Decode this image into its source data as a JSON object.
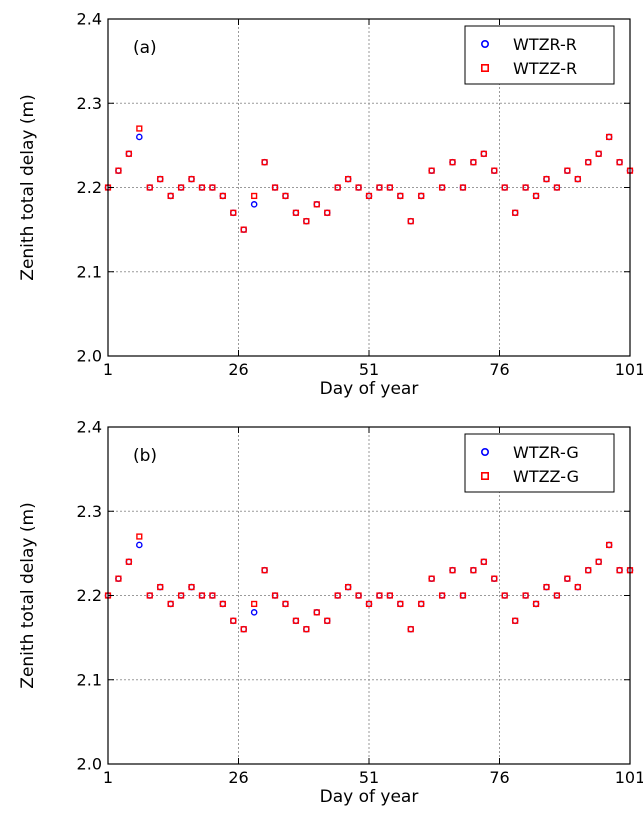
{
  "chart_data": [
    {
      "type": "scatter",
      "panel_label": "(a)",
      "xlabel": "Day of year",
      "ylabel": "Zenith total delay (m)",
      "xlim": [
        1,
        101
      ],
      "ylim": [
        2.0,
        2.4
      ],
      "xticks": [
        1,
        26,
        51,
        76,
        101
      ],
      "yticks": [
        2.0,
        2.1,
        2.2,
        2.3,
        2.4
      ],
      "xtick_labels": [
        "1",
        "26",
        "51",
        "76",
        "101"
      ],
      "ytick_labels": [
        "2.0",
        "2.1",
        "2.2",
        "2.3",
        "2.4"
      ],
      "grid": true,
      "legend_position": "top-right",
      "series": [
        {
          "name": "WTZR-R",
          "marker": "circle",
          "color": "#0000ff",
          "x": [
            1,
            3,
            5,
            7,
            9,
            11,
            13,
            15,
            17,
            19,
            21,
            23,
            25,
            27,
            29,
            31,
            33,
            35,
            37,
            39,
            41,
            43,
            45,
            47,
            49,
            51,
            53,
            55,
            57,
            59,
            61,
            63,
            65,
            67,
            69,
            71,
            73,
            75,
            77,
            79,
            81,
            83,
            85,
            87,
            89,
            91,
            93,
            95,
            97,
            99,
            101
          ],
          "y": [
            2.2,
            2.22,
            2.24,
            2.26,
            2.2,
            2.21,
            2.19,
            2.2,
            2.21,
            2.2,
            2.2,
            2.19,
            2.17,
            2.15,
            2.18,
            2.23,
            2.2,
            2.19,
            2.17,
            2.16,
            2.18,
            2.17,
            2.2,
            2.21,
            2.2,
            2.19,
            2.2,
            2.2,
            2.19,
            2.16,
            2.19,
            2.22,
            2.2,
            2.23,
            2.2,
            2.23,
            2.24,
            2.22,
            2.2,
            2.17,
            2.2,
            2.19,
            2.21,
            2.2,
            2.22,
            2.21,
            2.23,
            2.24,
            2.26,
            2.23,
            2.22
          ]
        },
        {
          "name": "WTZZ-R",
          "marker": "square",
          "color": "#ff0000",
          "x": [
            1,
            3,
            5,
            7,
            9,
            11,
            13,
            15,
            17,
            19,
            21,
            23,
            25,
            27,
            29,
            31,
            33,
            35,
            37,
            39,
            41,
            43,
            45,
            47,
            49,
            51,
            53,
            55,
            57,
            59,
            61,
            63,
            65,
            67,
            69,
            71,
            73,
            75,
            77,
            79,
            81,
            83,
            85,
            87,
            89,
            91,
            93,
            95,
            97,
            99,
            101
          ],
          "y": [
            2.2,
            2.22,
            2.24,
            2.27,
            2.2,
            2.21,
            2.19,
            2.2,
            2.21,
            2.2,
            2.2,
            2.19,
            2.17,
            2.15,
            2.19,
            2.23,
            2.2,
            2.19,
            2.17,
            2.16,
            2.18,
            2.17,
            2.2,
            2.21,
            2.2,
            2.19,
            2.2,
            2.2,
            2.19,
            2.16,
            2.19,
            2.22,
            2.2,
            2.23,
            2.2,
            2.23,
            2.24,
            2.22,
            2.2,
            2.17,
            2.2,
            2.19,
            2.21,
            2.2,
            2.22,
            2.21,
            2.23,
            2.24,
            2.26,
            2.23,
            2.22
          ]
        }
      ]
    },
    {
      "type": "scatter",
      "panel_label": "(b)",
      "xlabel": "Day of year",
      "ylabel": "Zenith total delay (m)",
      "xlim": [
        1,
        101
      ],
      "ylim": [
        2.0,
        2.4
      ],
      "xticks": [
        1,
        26,
        51,
        76,
        101
      ],
      "yticks": [
        2.0,
        2.1,
        2.2,
        2.3,
        2.4
      ],
      "xtick_labels": [
        "1",
        "26",
        "51",
        "76",
        "101"
      ],
      "ytick_labels": [
        "2.0",
        "2.1",
        "2.2",
        "2.3",
        "2.4"
      ],
      "grid": true,
      "legend_position": "top-right",
      "series": [
        {
          "name": "WTZR-G",
          "marker": "circle",
          "color": "#0000ff",
          "x": [
            1,
            3,
            5,
            7,
            9,
            11,
            13,
            15,
            17,
            19,
            21,
            23,
            25,
            27,
            29,
            31,
            33,
            35,
            37,
            39,
            41,
            43,
            45,
            47,
            49,
            51,
            53,
            55,
            57,
            59,
            61,
            63,
            65,
            67,
            69,
            71,
            73,
            75,
            77,
            79,
            81,
            83,
            85,
            87,
            89,
            91,
            93,
            95,
            97,
            99,
            101
          ],
          "y": [
            2.2,
            2.22,
            2.24,
            2.26,
            2.2,
            2.21,
            2.19,
            2.2,
            2.21,
            2.2,
            2.2,
            2.19,
            2.17,
            2.16,
            2.18,
            2.23,
            2.2,
            2.19,
            2.17,
            2.16,
            2.18,
            2.17,
            2.2,
            2.21,
            2.2,
            2.19,
            2.2,
            2.2,
            2.19,
            2.16,
            2.19,
            2.22,
            2.2,
            2.23,
            2.2,
            2.23,
            2.24,
            2.22,
            2.2,
            2.17,
            2.2,
            2.19,
            2.21,
            2.2,
            2.22,
            2.21,
            2.23,
            2.24,
            2.26,
            2.23,
            2.23
          ]
        },
        {
          "name": "WTZZ-G",
          "marker": "square",
          "color": "#ff0000",
          "x": [
            1,
            3,
            5,
            7,
            9,
            11,
            13,
            15,
            17,
            19,
            21,
            23,
            25,
            27,
            29,
            31,
            33,
            35,
            37,
            39,
            41,
            43,
            45,
            47,
            49,
            51,
            53,
            55,
            57,
            59,
            61,
            63,
            65,
            67,
            69,
            71,
            73,
            75,
            77,
            79,
            81,
            83,
            85,
            87,
            89,
            91,
            93,
            95,
            97,
            99,
            101
          ],
          "y": [
            2.2,
            2.22,
            2.24,
            2.27,
            2.2,
            2.21,
            2.19,
            2.2,
            2.21,
            2.2,
            2.2,
            2.19,
            2.17,
            2.16,
            2.19,
            2.23,
            2.2,
            2.19,
            2.17,
            2.16,
            2.18,
            2.17,
            2.2,
            2.21,
            2.2,
            2.19,
            2.2,
            2.2,
            2.19,
            2.16,
            2.19,
            2.22,
            2.2,
            2.23,
            2.2,
            2.23,
            2.24,
            2.22,
            2.2,
            2.17,
            2.2,
            2.19,
            2.21,
            2.2,
            2.22,
            2.21,
            2.23,
            2.24,
            2.26,
            2.23,
            2.23
          ]
        }
      ]
    }
  ]
}
